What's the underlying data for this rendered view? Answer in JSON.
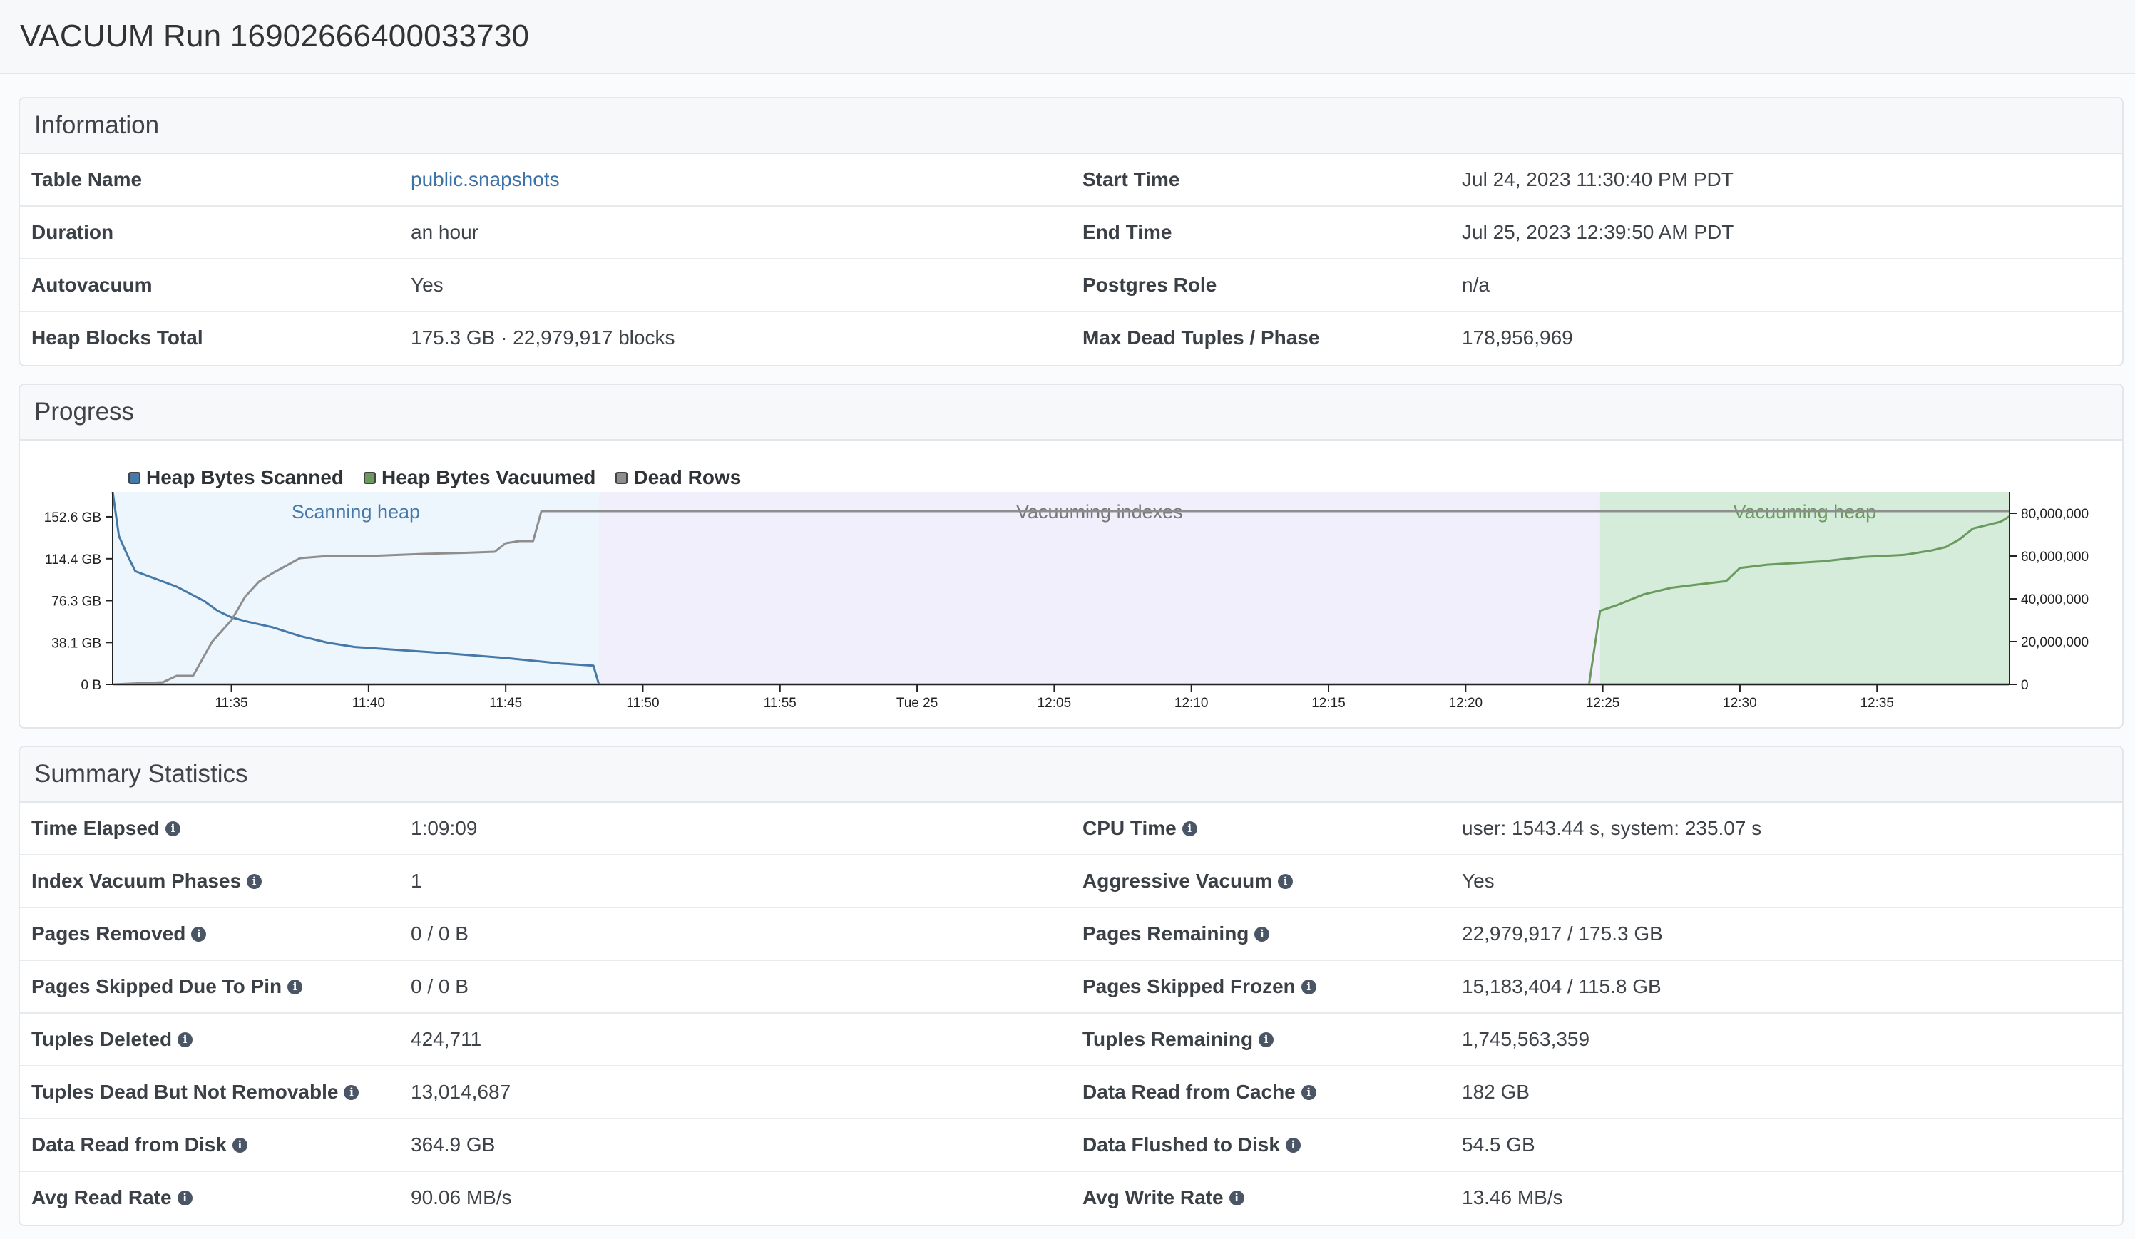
{
  "page": {
    "title": "VACUUM Run 16902666400033730"
  },
  "information": {
    "heading": "Information",
    "rows": [
      {
        "label1": "Table Name",
        "value1": "public.snapshots",
        "label2": "Start Time",
        "value2": "Jul 24, 2023 11:30:40 PM PDT"
      },
      {
        "label1": "Duration",
        "value1": "an hour",
        "label2": "End Time",
        "value2": "Jul 25, 2023 12:39:50 AM PDT"
      },
      {
        "label1": "Autovacuum",
        "value1": "Yes",
        "label2": "Postgres Role",
        "value2": "n/a"
      },
      {
        "label1": "Heap Blocks Total",
        "value1": "175.3 GB · 22,979,917 blocks",
        "label2": "Max Dead Tuples / Phase",
        "value2": "178,956,969"
      }
    ]
  },
  "progress": {
    "heading": "Progress",
    "legend": [
      {
        "name": "Heap Bytes Scanned",
        "color": "#4679a8"
      },
      {
        "name": "Heap Bytes Vacuumed",
        "color": "#6a9a5d"
      },
      {
        "name": "Dead Rows",
        "color": "#8e8e8e"
      }
    ],
    "phases": [
      {
        "label": "Scanning heap",
        "color": "#eef6fd",
        "text_color": "#4679a8"
      },
      {
        "label": "Vacuuming indexes",
        "color": "#f0effb",
        "text_color": "#777"
      },
      {
        "label": "Vacuuming heap",
        "color": "#d4ecd9",
        "text_color": "#6a9a5d"
      }
    ]
  },
  "chart_data": {
    "type": "line",
    "x_tick_labels": [
      "11:35",
      "11:40",
      "11:45",
      "11:50",
      "11:55",
      "Tue 25",
      "12:05",
      "12:10",
      "12:15",
      "12:20",
      "12:25",
      "12:30",
      "12:35"
    ],
    "x_ticks_min": [
      35,
      40,
      45,
      50,
      55,
      60,
      65,
      70,
      75,
      80,
      85,
      90,
      95
    ],
    "xlim_min": [
      30.67,
      99.83
    ],
    "y_left": {
      "unit": "GB",
      "ticks": [
        "0 B",
        "38.1 GB",
        "76.3 GB",
        "114.4 GB",
        "152.6 GB"
      ],
      "tick_values": [
        0,
        38.1,
        76.3,
        114.4,
        152.6
      ],
      "range": [
        0,
        175.3
      ]
    },
    "y_right": {
      "ticks": [
        "0",
        "20,000,000",
        "40,000,000",
        "60,000,000",
        "80,000,000"
      ],
      "tick_values": [
        0,
        20000000,
        40000000,
        60000000,
        80000000
      ],
      "range": [
        0,
        90000000
      ]
    },
    "phases_min": [
      [
        30.67,
        48.4
      ],
      [
        48.4,
        84.9
      ],
      [
        84.9,
        99.83
      ]
    ],
    "series": [
      {
        "name": "Heap Bytes Scanned",
        "axis": "left",
        "x": [
          30.67,
          30.9,
          31.2,
          31.5,
          33,
          34,
          34.5,
          35,
          35.6,
          36.5,
          37.5,
          38.5,
          39.5,
          41,
          43,
          45,
          47,
          48.2,
          48.4,
          99.83
        ],
        "y": [
          175.3,
          135,
          118,
          103,
          89,
          76,
          67,
          61,
          57,
          52,
          44,
          38,
          34,
          31.5,
          28,
          24,
          19,
          17,
          0,
          0
        ]
      },
      {
        "name": "Heap Bytes Vacuumed",
        "axis": "left",
        "x": [
          30.67,
          84.5,
          84.9,
          85.5,
          86.5,
          87.5,
          88.5,
          89.5,
          90,
          91,
          93,
          94.5,
          96,
          97,
          97.5,
          98,
          98.5,
          99.5,
          99.83
        ],
        "y": [
          0,
          0,
          67,
          72,
          82,
          88,
          91,
          94,
          106,
          109,
          112,
          116,
          118,
          122,
          125,
          132,
          142,
          148,
          153
        ]
      },
      {
        "name": "Dead Rows",
        "axis": "right",
        "x": [
          30.67,
          32.5,
          33,
          33.6,
          34.3,
          35,
          35.5,
          36,
          36.5,
          37.5,
          38.5,
          40,
          42,
          43.5,
          44.6,
          45,
          45.5,
          46,
          46.3,
          99.83
        ],
        "y": [
          0,
          1000000,
          4000000,
          4000000,
          20000000,
          30000000,
          41000000,
          48000000,
          52000000,
          59000000,
          60000000,
          60000000,
          61000000,
          61500000,
          62000000,
          66000000,
          67000000,
          67000000,
          81000000,
          81000000
        ]
      }
    ]
  },
  "summary": {
    "heading": "Summary Statistics",
    "rows": [
      {
        "label1": "Time Elapsed",
        "value1": "1:09:09",
        "label2": "CPU Time",
        "value2": "user: 1543.44 s, system: 235.07 s"
      },
      {
        "label1": "Index Vacuum Phases",
        "value1": "1",
        "label2": "Aggressive Vacuum",
        "value2": "Yes"
      },
      {
        "label1": "Pages Removed",
        "value1": "0 / 0 B",
        "label2": "Pages Remaining",
        "value2": "22,979,917 / 175.3 GB"
      },
      {
        "label1": "Pages Skipped Due To Pin",
        "value1": "0 / 0 B",
        "label2": "Pages Skipped Frozen",
        "value2": "15,183,404 / 115.8 GB"
      },
      {
        "label1": "Tuples Deleted",
        "value1": "424,711",
        "label2": "Tuples Remaining",
        "value2": "1,745,563,359"
      },
      {
        "label1": "Tuples Dead But Not Removable",
        "value1": "13,014,687",
        "label2": "Data Read from Cache",
        "value2": "182 GB"
      },
      {
        "label1": "Data Read from Disk",
        "value1": "364.9 GB",
        "label2": "Data Flushed to Disk",
        "value2": "54.5 GB"
      },
      {
        "label1": "Avg Read Rate",
        "value1": "90.06 MB/s",
        "label2": "Avg Write Rate",
        "value2": "13.46 MB/s"
      }
    ]
  }
}
